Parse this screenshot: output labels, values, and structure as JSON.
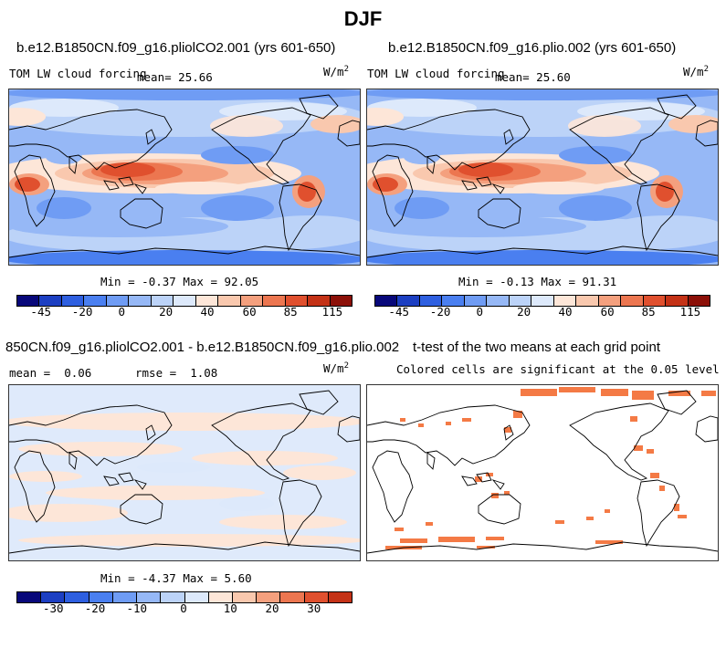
{
  "figure_title": "DJF",
  "panels": [
    {
      "title": "b.e12.B1850CN.f09_g16.pliolCO2.001 (yrs 601-650)",
      "field": "TOM LW cloud forcing",
      "mean_label": "mean=",
      "mean_value": "25.66",
      "units_base": "W/m",
      "units_exp": "2",
      "min_label": "Min =",
      "min_value": "-0.37",
      "max_label": "Max =",
      "max_value": "92.05",
      "colorbar_ticks": [
        "-45",
        "-20",
        "0",
        "20",
        "40",
        "60",
        "85",
        "115"
      ]
    },
    {
      "title": "b.e12.B1850CN.f09_g16.plio.002 (yrs 601-650)",
      "field": "TOM LW cloud forcing",
      "mean_label": "mean=",
      "mean_value": "25.60",
      "units_base": "W/m",
      "units_exp": "2",
      "min_label": "Min =",
      "min_value": "-0.13",
      "max_label": "Max =",
      "max_value": "91.31",
      "colorbar_ticks": [
        "-45",
        "-20",
        "0",
        "20",
        "40",
        "60",
        "85",
        "115"
      ]
    },
    {
      "title": "850CN.f09_g16.pliolCO2.001 - b.e12.B1850CN.f09_g16.plio.002",
      "mean_label": "mean =",
      "mean_value": "0.06",
      "rmse_label": "rmse =",
      "rmse_value": "1.08",
      "units_base": "W/m",
      "units_exp": "2",
      "min_label": "Min =",
      "min_value": "-4.37",
      "max_label": "Max =",
      "max_value": "5.60",
      "colorbar_ticks": [
        "-30",
        "-20",
        "-10",
        "0",
        "10",
        "20",
        "30"
      ]
    },
    {
      "title": "t-test of the two means at each grid point",
      "subtitle": "Colored cells are significant at the 0.05 level"
    }
  ],
  "colors": {
    "colorbar": [
      "#08087a",
      "#1c3fc2",
      "#2e5fe0",
      "#4a7ff0",
      "#6f9cf4",
      "#96b8f6",
      "#bcd3f8",
      "#dde9fb",
      "#fde6d8",
      "#f9c8ae",
      "#f4a07e",
      "#ec7650",
      "#e0502e",
      "#c43216",
      "#8c1008"
    ],
    "significance": "#f47a45",
    "coastline": "#000000"
  }
}
